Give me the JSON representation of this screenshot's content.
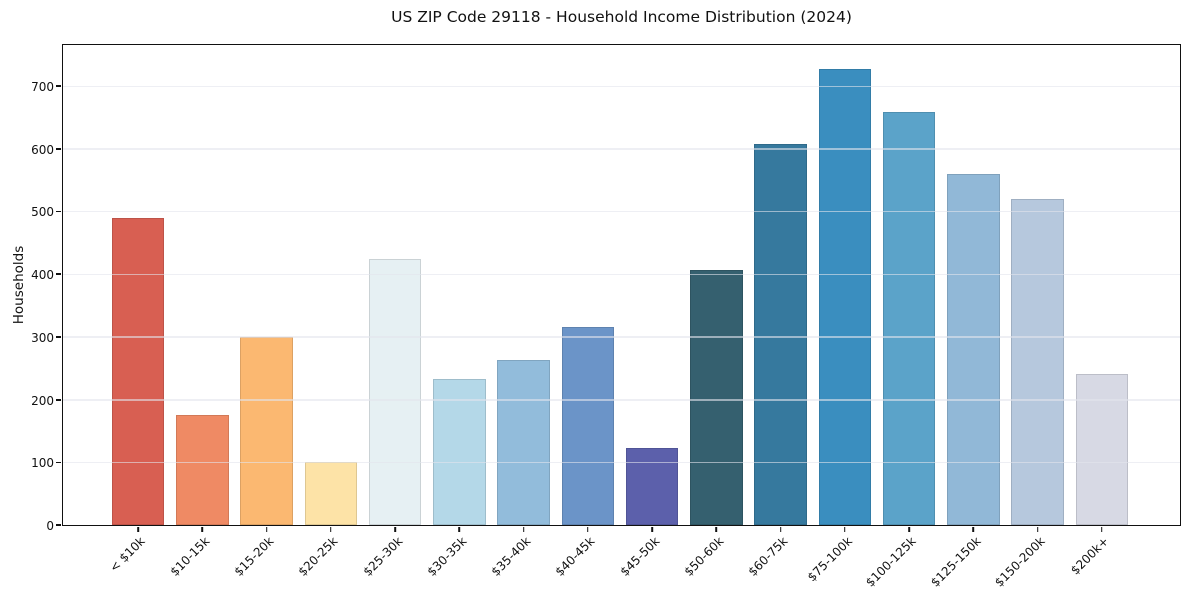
{
  "chart_data": {
    "type": "bar",
    "title": "US ZIP Code 29118 - Household Income Distribution (2024)",
    "xlabel": "",
    "ylabel": "Households",
    "categories": [
      "< $10k",
      "$10-15k",
      "$15-20k",
      "$20-25k",
      "$25-30k",
      "$30-35k",
      "$35-40k",
      "$40-45k",
      "$45-50k",
      "$50-60k",
      "$60-75k",
      "$75-100k",
      "$100-125k",
      "$125-150k",
      "$150-200k",
      "$200k+"
    ],
    "values": [
      490,
      176,
      300,
      101,
      424,
      232,
      263,
      315,
      122,
      407,
      608,
      727,
      659,
      560,
      519,
      240
    ],
    "bar_colors": [
      "#d85f52",
      "#ef8a64",
      "#fbb871",
      "#fde3a7",
      "#e6f0f3",
      "#b4d8e8",
      "#92bcdb",
      "#6b94c8",
      "#5c60ab",
      "#35606f",
      "#36799e",
      "#3a8ebf",
      "#5ba3c9",
      "#91b8d7",
      "#b6c8dd",
      "#d7d9e4"
    ],
    "ylim": [
      0,
      765
    ],
    "yticks": [
      0,
      100,
      200,
      300,
      400,
      500,
      600,
      700
    ],
    "grid": "horizontal",
    "legend": "none",
    "x_tick_rotation_deg": 45
  },
  "colors": {
    "background": "#ffffff",
    "axis": "#111111",
    "grid_overlay": "rgba(226,229,237,0.6)",
    "text": "#111111"
  }
}
